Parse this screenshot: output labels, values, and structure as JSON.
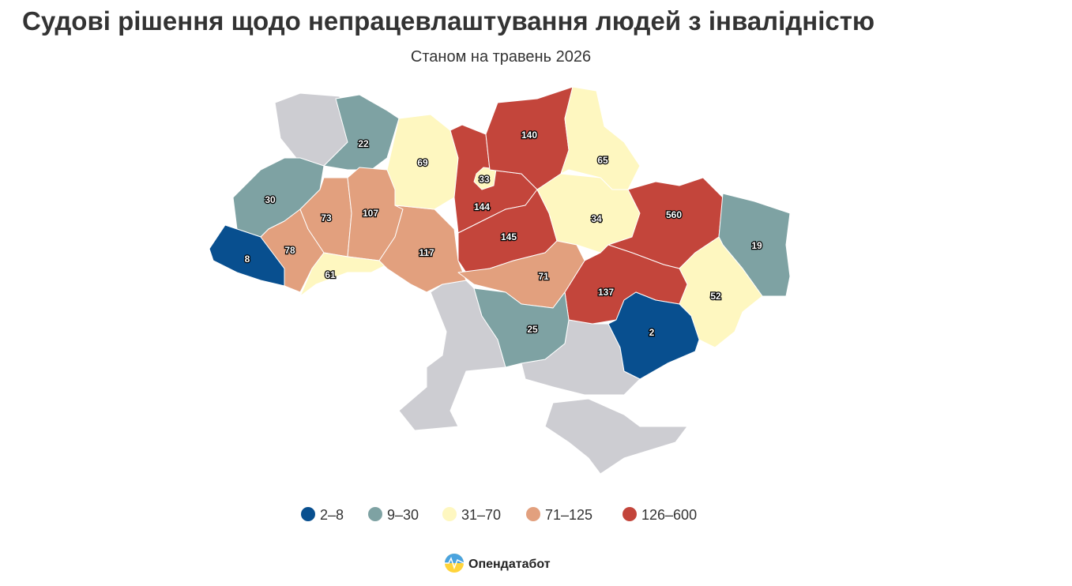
{
  "title": "Судові рішення щодо непрацевлаштування людей з інвалідністю",
  "subtitle": "Станом на травень 2026",
  "regions": [
    {
      "value": 22,
      "color": "#7ea2a3"
    },
    {
      "value": 30,
      "color": "#7ea2a3"
    },
    {
      "value": 8,
      "color": "#084f8f"
    },
    {
      "value": 78,
      "color": "#e2a07e"
    },
    {
      "value": 73,
      "color": "#e2a07e"
    },
    {
      "value": 107,
      "color": "#e2a07e"
    },
    {
      "value": 61,
      "color": "#fef7c0"
    },
    {
      "value": 117,
      "color": "#e2a07e"
    },
    {
      "value": 69,
      "color": "#fef7c0"
    },
    {
      "value": 144,
      "color": "#c3453b"
    },
    {
      "value": 33,
      "color": "#fef7c0"
    },
    {
      "value": 145,
      "color": "#c3453b"
    },
    {
      "value": 140,
      "color": "#c3453b"
    },
    {
      "value": 65,
      "color": "#fef7c0"
    },
    {
      "value": 34,
      "color": "#fef7c0"
    },
    {
      "value": 560,
      "color": "#c3453b"
    },
    {
      "value": 19,
      "color": "#7ea2a3"
    },
    {
      "value": 52,
      "color": "#fef7c0"
    },
    {
      "value": 137,
      "color": "#c3453b"
    },
    {
      "value": 2,
      "color": "#084f8f"
    },
    {
      "value": 71,
      "color": "#e2a07e"
    },
    {
      "value": 25,
      "color": "#7ea2a3"
    }
  ],
  "legend": [
    {
      "label": "2–8",
      "color": "#084f8f"
    },
    {
      "label": "9–30",
      "color": "#7ea2a3"
    },
    {
      "label": "31–70",
      "color": "#fef7c0"
    },
    {
      "label": "71–125",
      "color": "#e2a07e"
    },
    {
      "label": "126–600",
      "color": "#c3453b"
    }
  ],
  "logo": "Опендатабот"
}
